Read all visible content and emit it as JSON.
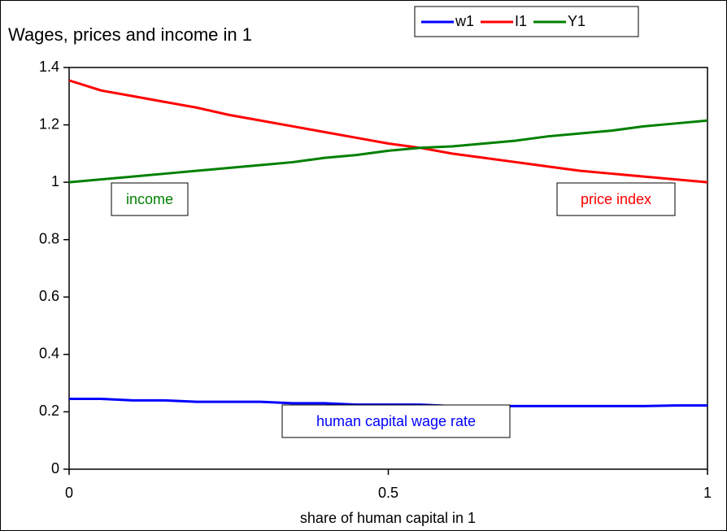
{
  "chart_data": {
    "type": "line",
    "title": "Wages, prices and income in 1",
    "x_label": "share of human capital in 1",
    "x": [
      0,
      0.05,
      0.1,
      0.15,
      0.2,
      0.25,
      0.3,
      0.35,
      0.4,
      0.45,
      0.5,
      0.55,
      0.6,
      0.65,
      0.7,
      0.75,
      0.8,
      0.85,
      0.9,
      0.95,
      1
    ],
    "series": [
      {
        "name": "w1",
        "color": "#0000ff",
        "values": [
          0.245,
          0.245,
          0.24,
          0.24,
          0.235,
          0.235,
          0.235,
          0.23,
          0.23,
          0.225,
          0.225,
          0.225,
          0.22,
          0.22,
          0.22,
          0.22,
          0.22,
          0.22,
          0.22,
          0.222,
          0.222
        ]
      },
      {
        "name": "I1",
        "color": "#ff0000",
        "values": [
          1.355,
          1.32,
          1.3,
          1.28,
          1.26,
          1.235,
          1.215,
          1.195,
          1.175,
          1.155,
          1.135,
          1.12,
          1.1,
          1.085,
          1.07,
          1.055,
          1.04,
          1.03,
          1.02,
          1.01,
          1.0
        ]
      },
      {
        "name": "Y1",
        "color": "#008000",
        "values": [
          1.0,
          1.01,
          1.02,
          1.03,
          1.04,
          1.05,
          1.06,
          1.07,
          1.085,
          1.095,
          1.11,
          1.12,
          1.125,
          1.135,
          1.145,
          1.16,
          1.17,
          1.18,
          1.195,
          1.205,
          1.215
        ]
      }
    ],
    "annotations": [
      "human capital wage rate",
      "price index",
      "income"
    ],
    "xlim": [
      0,
      1
    ],
    "xticks": [
      0,
      0.5,
      1
    ],
    "ylim": [
      0,
      1.4
    ],
    "yticks": [
      0,
      0.2,
      0.4,
      0.6,
      0.8,
      1,
      1.2,
      1.4
    ],
    "grid": false,
    "legend": "top"
  }
}
